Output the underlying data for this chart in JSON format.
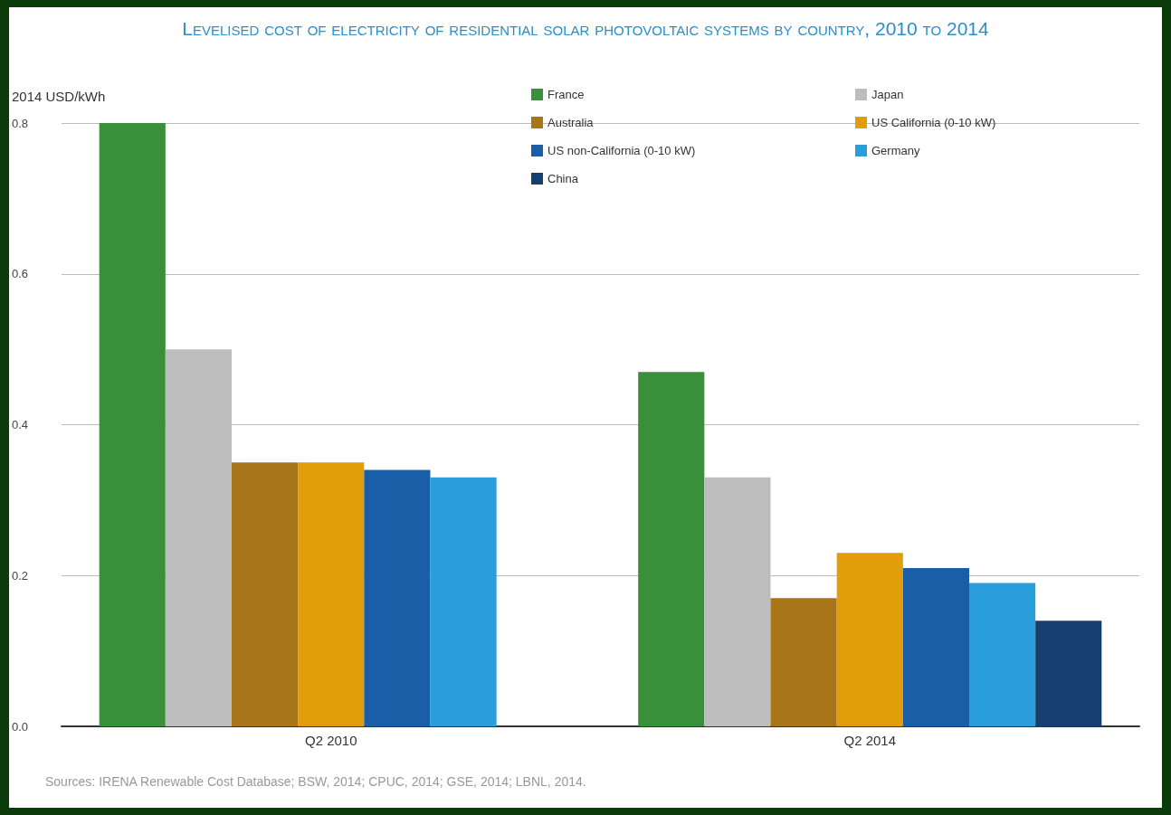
{
  "chart_data": {
    "type": "bar",
    "title": "Levelised cost of electricity of residential solar photovoltaic systems by country, 2010 to 2014",
    "ylabel": "2014 USD/kWh",
    "categories": [
      "Q2 2010",
      "Q2 2014"
    ],
    "series": [
      {
        "name": "France",
        "color": "#3a8f3a",
        "values": [
          0.8,
          0.47
        ]
      },
      {
        "name": "Japan",
        "color": "#bdbdbd",
        "values": [
          0.5,
          0.33
        ]
      },
      {
        "name": "Australia",
        "color": "#a87618",
        "values": [
          0.35,
          0.17
        ]
      },
      {
        "name": "US California (0-10 kW)",
        "color": "#e09e0a",
        "values": [
          0.35,
          0.23
        ]
      },
      {
        "name": "US non-California (0-10 kW)",
        "color": "#1a5ea8",
        "values": [
          0.34,
          0.21
        ]
      },
      {
        "name": "Germany",
        "color": "#2a9edb",
        "values": [
          0.33,
          0.19
        ]
      },
      {
        "name": "China",
        "color": "#163f70",
        "values": [
          null,
          0.14
        ]
      }
    ],
    "ylim": [
      0,
      0.8
    ],
    "yticks": [
      {
        "value": 0,
        "label": "0.0"
      },
      0.2,
      0.4,
      0.6,
      0.8
    ],
    "grid": "y",
    "legend": "top",
    "annotations": [
      "Sources: IRENA Renewable Cost Database; BSW, 2014; CPUC, 2014; GSE, 2014; LBNL, 2014."
    ]
  }
}
